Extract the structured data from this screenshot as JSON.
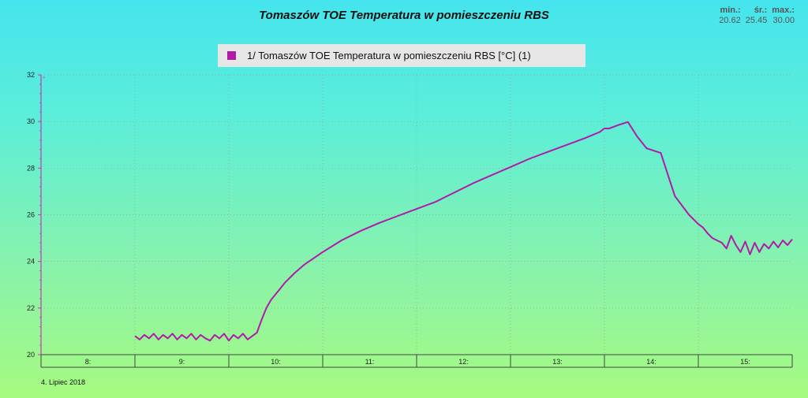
{
  "header": {
    "title": "Tomaszów TOE Temperatura w pomieszczeniu RBS"
  },
  "stats": {
    "min_label": "min.:",
    "avg_label": "śr.:",
    "max_label": "max.:",
    "min_value": "20.62",
    "avg_value": "25.45",
    "max_value": "30.00"
  },
  "footer": {
    "date": "4. Lipiec 2018"
  },
  "colors": {
    "series": "#b01ca8",
    "grid": "#9aa0a0",
    "axis": "#c23cba"
  },
  "chart_data": {
    "type": "line",
    "title": "Tomaszów TOE Temperatura w pomieszczeniu RBS",
    "xlabel": "",
    "ylabel": "",
    "ylim": [
      20,
      32
    ],
    "xlim": [
      7.5,
      15.5
    ],
    "yticks": [
      20,
      22,
      24,
      26,
      28,
      30,
      32
    ],
    "xtick_labels": [
      "8:",
      "9:",
      "10:",
      "11:",
      "12:",
      "13:",
      "14:",
      "15:"
    ],
    "x_hour_centers": [
      8,
      9,
      10,
      11,
      12,
      13,
      14,
      15
    ],
    "grid": true,
    "legend_placement": "top-center",
    "series": [
      {
        "name": "1/ Tomaszów TOE Temperatura w pomieszczeniu RBS [°C] (1)",
        "x": [
          8.5,
          8.55,
          8.6,
          8.65,
          8.7,
          8.75,
          8.8,
          8.85,
          8.9,
          8.95,
          9.0,
          9.05,
          9.1,
          9.15,
          9.2,
          9.25,
          9.3,
          9.35,
          9.4,
          9.45,
          9.5,
          9.55,
          9.6,
          9.65,
          9.7,
          9.75,
          9.8,
          9.85,
          9.9,
          9.95,
          10.0,
          10.05,
          10.1,
          10.2,
          10.3,
          10.5,
          10.7,
          10.9,
          11.1,
          11.3,
          11.5,
          11.7,
          11.9,
          12.1,
          12.3,
          12.5,
          12.7,
          12.9,
          13.1,
          13.3,
          13.45,
          13.5,
          13.55,
          13.65,
          13.75,
          13.85,
          13.95,
          14.1,
          14.25,
          14.4,
          14.5,
          14.55,
          14.6,
          14.65,
          14.75,
          14.8,
          14.85,
          14.9,
          14.95,
          15.0,
          15.05,
          15.1,
          15.15,
          15.2,
          15.25,
          15.3,
          15.35,
          15.4,
          15.45,
          15.5
        ],
        "y": [
          20.8,
          20.65,
          20.85,
          20.7,
          20.9,
          20.65,
          20.85,
          20.7,
          20.9,
          20.65,
          20.85,
          20.7,
          20.9,
          20.65,
          20.85,
          20.7,
          20.6,
          20.85,
          20.7,
          20.9,
          20.6,
          20.85,
          20.7,
          20.9,
          20.65,
          20.8,
          20.95,
          21.5,
          22.0,
          22.35,
          22.6,
          22.85,
          23.1,
          23.5,
          23.85,
          24.4,
          24.9,
          25.3,
          25.65,
          25.95,
          26.25,
          26.55,
          26.95,
          27.35,
          27.7,
          28.05,
          28.4,
          28.7,
          29.0,
          29.3,
          29.55,
          29.7,
          29.7,
          29.85,
          29.98,
          29.35,
          28.85,
          28.65,
          26.8,
          26.0,
          25.6,
          25.45,
          25.2,
          25.0,
          24.8,
          24.55,
          25.1,
          24.7,
          24.4,
          24.85,
          24.3,
          24.8,
          24.4,
          24.75,
          24.55,
          24.85,
          24.6,
          24.9,
          24.7,
          24.95
        ]
      }
    ]
  }
}
